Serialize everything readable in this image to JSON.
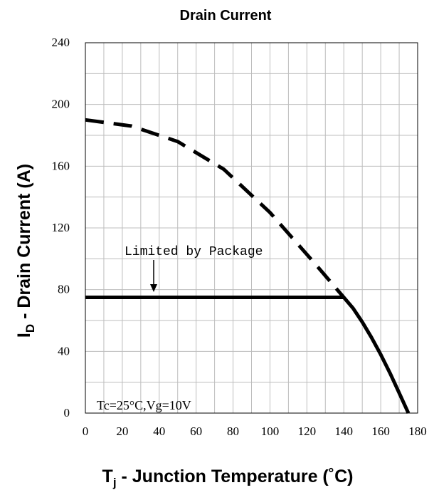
{
  "chart_data": {
    "type": "line",
    "title": "Drain Current",
    "ylabel": {
      "main": "I",
      "sub": "D",
      "rest": " - Drain Current (A)"
    },
    "xlabel": {
      "main": "T",
      "sub": "j",
      "rest": " - Junction Temperature (˚C)"
    },
    "xlim": [
      0,
      180
    ],
    "ylim": [
      0,
      240
    ],
    "x_ticks": [
      0,
      20,
      40,
      60,
      80,
      100,
      120,
      140,
      160,
      180
    ],
    "y_ticks": [
      0,
      40,
      80,
      120,
      160,
      200,
      240
    ],
    "grid": true,
    "series": [
      {
        "style": "dashed",
        "x": [
          0,
          25,
          50,
          75,
          100,
          125,
          140
        ],
        "y": [
          190,
          186,
          176,
          158,
          130,
          96,
          75
        ]
      },
      {
        "style": "solid",
        "x": [
          0,
          20,
          40,
          60,
          80,
          100,
          120,
          140,
          145,
          150,
          155,
          160,
          165,
          170,
          175
        ],
        "y": [
          75,
          75,
          75,
          75,
          75,
          75,
          75,
          75,
          68,
          59,
          49,
          38,
          26,
          13,
          0
        ]
      }
    ],
    "annotations": [
      {
        "text": "Limited by Package",
        "arrow_to": {
          "x": 37,
          "y": 75
        }
      },
      {
        "text": "Tc=25°C,Vg=10V"
      }
    ]
  }
}
